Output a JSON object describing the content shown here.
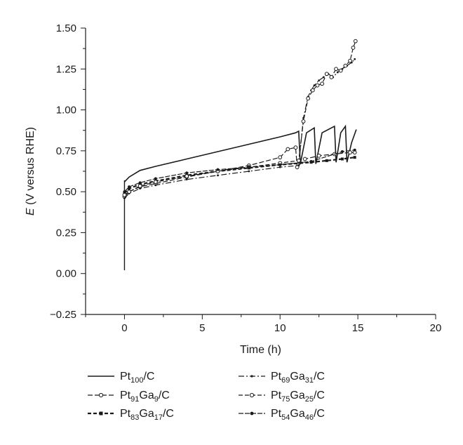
{
  "chart_data": {
    "type": "line",
    "xlabel": "Time (h)",
    "ylabel_italic": "E",
    "ylabel_rest": " (V versus RHE)",
    "xlim": [
      -2.5,
      20
    ],
    "ylim": [
      -0.25,
      1.5
    ],
    "x_ticks": [
      "0",
      "5",
      "10",
      "15",
      "20"
    ],
    "y_ticks": [
      "−0.25",
      "0.00",
      "0.25",
      "0.50",
      "0.75",
      "1.00",
      "1.25",
      "1.50"
    ],
    "grid": false,
    "legend_position": "bottom",
    "series": [
      {
        "legend": [
          [
            "Pt",
            ""
          ],
          [
            "100",
            "sub"
          ],
          [
            "/C",
            ""
          ]
        ],
        "color": "#1a1a1a",
        "x": [
          0.0,
          0.3,
          1.0,
          2.0,
          4.0,
          6.0,
          8.0,
          10.0,
          11.0,
          11.2,
          11.3,
          11.7,
          12.2,
          12.3,
          12.7,
          13.5,
          13.6,
          13.9,
          14.2,
          14.3,
          14.6,
          14.9
        ],
        "y": [
          0.56,
          0.59,
          0.63,
          0.655,
          0.7,
          0.745,
          0.79,
          0.835,
          0.86,
          0.87,
          0.67,
          0.86,
          0.89,
          0.67,
          0.86,
          0.9,
          0.68,
          0.86,
          0.9,
          0.68,
          0.8,
          0.88
        ]
      },
      {
        "legend": [
          [
            "Pt",
            ""
          ],
          [
            "91",
            "sub"
          ],
          [
            "Ga",
            ""
          ],
          [
            "9",
            "sub"
          ],
          [
            "/C",
            ""
          ]
        ],
        "color": "#1a1a1a",
        "x": [
          0.0,
          0.3,
          1.0,
          2.0,
          4.0,
          6.0,
          8.0,
          10.0,
          10.5,
          11.0,
          11.1,
          11.6,
          12.5,
          13.5,
          14.5,
          14.8
        ],
        "y": [
          0.47,
          0.5,
          0.53,
          0.55,
          0.59,
          0.625,
          0.66,
          0.71,
          0.76,
          0.77,
          0.65,
          0.7,
          0.72,
          0.73,
          0.74,
          0.74
        ]
      },
      {
        "legend": [
          [
            "Pt",
            ""
          ],
          [
            "83",
            "sub"
          ],
          [
            "Ga",
            ""
          ],
          [
            "17",
            "sub"
          ],
          [
            "/C",
            ""
          ]
        ],
        "color": "#1a1a1a",
        "x": [
          0.0,
          0.3,
          1.0,
          2.0,
          4.0,
          6.0,
          8.0,
          10.0,
          12.0,
          13.0,
          14.0,
          14.8
        ],
        "y": [
          0.49,
          0.52,
          0.545,
          0.565,
          0.6,
          0.625,
          0.645,
          0.665,
          0.68,
          0.69,
          0.7,
          0.71
        ]
      },
      {
        "legend": [
          [
            "Pt",
            ""
          ],
          [
            "69",
            "sub"
          ],
          [
            "Ga",
            ""
          ],
          [
            "31",
            "sub"
          ],
          [
            "/C",
            ""
          ]
        ],
        "color": "#1a1a1a",
        "x": [
          0.0,
          0.3,
          1.0,
          2.0,
          4.0,
          6.0,
          8.0,
          10.0,
          11.2,
          11.5,
          11.8,
          12.0,
          12.2,
          12.5,
          12.8,
          13.1,
          13.4,
          13.7,
          14.0,
          14.3,
          14.6,
          14.8
        ],
        "y": [
          0.46,
          0.49,
          0.52,
          0.54,
          0.575,
          0.6,
          0.625,
          0.65,
          0.66,
          0.95,
          1.08,
          1.12,
          1.15,
          1.18,
          1.2,
          1.22,
          1.2,
          1.23,
          1.25,
          1.27,
          1.29,
          1.31
        ]
      },
      {
        "legend": [
          [
            "Pt",
            ""
          ],
          [
            "75",
            "sub"
          ],
          [
            "Ga",
            ""
          ],
          [
            "25",
            "sub"
          ],
          [
            "/C",
            ""
          ]
        ],
        "color": "#1a1a1a",
        "x": [
          0.0,
          0.3,
          1.0,
          2.0,
          4.0,
          6.0,
          8.0,
          10.0,
          11.2,
          11.5,
          11.8,
          12.1,
          12.4,
          12.7,
          13.0,
          13.3,
          13.6,
          13.9,
          14.2,
          14.5,
          14.7,
          14.85
        ],
        "y": [
          0.48,
          0.5,
          0.535,
          0.56,
          0.595,
          0.625,
          0.65,
          0.675,
          0.69,
          0.93,
          1.07,
          1.12,
          1.15,
          1.16,
          1.22,
          1.2,
          1.25,
          1.24,
          1.27,
          1.3,
          1.38,
          1.42
        ]
      },
      {
        "legend": [
          [
            "Pt",
            ""
          ],
          [
            "54",
            "sub"
          ],
          [
            "Ga",
            ""
          ],
          [
            "46",
            "sub"
          ],
          [
            "/C",
            ""
          ]
        ],
        "color": "#1a1a1a",
        "x": [
          0.0,
          0.3,
          1.0,
          2.0,
          4.0,
          6.0,
          8.0,
          10.0,
          12.0,
          14.0,
          14.8
        ],
        "y": [
          0.5,
          0.53,
          0.555,
          0.58,
          0.615,
          0.635,
          0.65,
          0.665,
          0.685,
          0.745,
          0.755
        ]
      }
    ]
  }
}
